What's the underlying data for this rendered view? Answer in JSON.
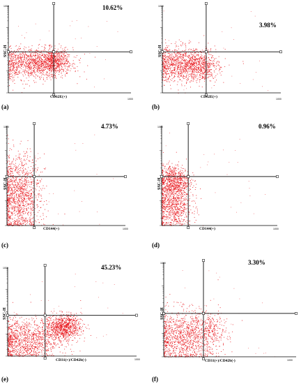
{
  "chart_data": [
    {
      "type": "scatter",
      "panel_label": "(a)",
      "percentage": "10.62%",
      "xlabel": "CD62E(+)",
      "ylabel": "SSC-H",
      "xmax_label": "1000",
      "ymax_label": "1000",
      "gate_x": 0.37,
      "gate_y": 0.47,
      "clusters": [
        {
          "cx": 0.2,
          "cy": 0.34,
          "sx": 0.16,
          "sy": 0.09,
          "n": 1100
        },
        {
          "cx": 0.36,
          "cy": 0.36,
          "sx": 0.06,
          "sy": 0.07,
          "n": 500
        }
      ],
      "color": "#e8141a"
    },
    {
      "type": "scatter",
      "panel_label": "(b)",
      "percentage": "3.98%",
      "xlabel": "CD62E(+)",
      "ylabel": "SSC-H",
      "xmax_label": "1000",
      "ymax_label": "1000",
      "gate_x": 0.37,
      "gate_y": 0.47,
      "clusters": [
        {
          "cx": 0.18,
          "cy": 0.33,
          "sx": 0.14,
          "sy": 0.1,
          "n": 1100
        },
        {
          "cx": 0.33,
          "cy": 0.3,
          "sx": 0.06,
          "sy": 0.08,
          "n": 300
        }
      ],
      "color": "#e8141a"
    },
    {
      "type": "scatter",
      "panel_label": "(c)",
      "percentage": "4.73%",
      "xlabel": "CD144(+)",
      "ylabel": "SSC-H",
      "xmax_label": "1000",
      "ymax_label": "1000",
      "gate_x": 0.23,
      "gate_y": 0.49,
      "clusters": [
        {
          "cx": 0.1,
          "cy": 0.3,
          "sx": 0.09,
          "sy": 0.2,
          "n": 1300
        }
      ],
      "color": "#e8141a"
    },
    {
      "type": "scatter",
      "panel_label": "(d)",
      "percentage": "0.96%",
      "xlabel": "CD144(+)",
      "ylabel": "SSC-H",
      "xmax_label": "1000",
      "ymax_label": "1000",
      "gate_x": 0.23,
      "gate_y": 0.49,
      "clusters": [
        {
          "cx": 0.1,
          "cy": 0.45,
          "sx": 0.07,
          "sy": 0.08,
          "n": 700
        },
        {
          "cx": 0.1,
          "cy": 0.2,
          "sx": 0.08,
          "sy": 0.12,
          "n": 800
        }
      ],
      "color": "#e8141a"
    },
    {
      "type": "scatter",
      "panel_label": "(e)",
      "percentage": "45.23%",
      "xlabel": "CD31(+)/CD42b(-)",
      "ylabel": "SSC-H",
      "xmax_label": "1000",
      "ymax_label": "1000",
      "gate_x": 0.29,
      "gate_y": 0.46,
      "clusters": [
        {
          "cx": 0.43,
          "cy": 0.33,
          "sx": 0.07,
          "sy": 0.07,
          "n": 900
        },
        {
          "cx": 0.13,
          "cy": 0.18,
          "sx": 0.13,
          "sy": 0.12,
          "n": 1100
        }
      ],
      "color": "#e8141a"
    },
    {
      "type": "scatter",
      "panel_label": "(f)",
      "percentage": "3.30%",
      "xlabel": "CD31(+)/CD42b(-)",
      "ylabel": "SSC-H",
      "xmax_label": "1000",
      "ymax_label": "1000",
      "gate_x": 0.3,
      "gate_y": 0.46,
      "clusters": [
        {
          "cx": 0.16,
          "cy": 0.22,
          "sx": 0.13,
          "sy": 0.14,
          "n": 1200
        },
        {
          "cx": 0.36,
          "cy": 0.3,
          "sx": 0.06,
          "sy": 0.08,
          "n": 150
        }
      ],
      "color": "#e8141a"
    }
  ]
}
